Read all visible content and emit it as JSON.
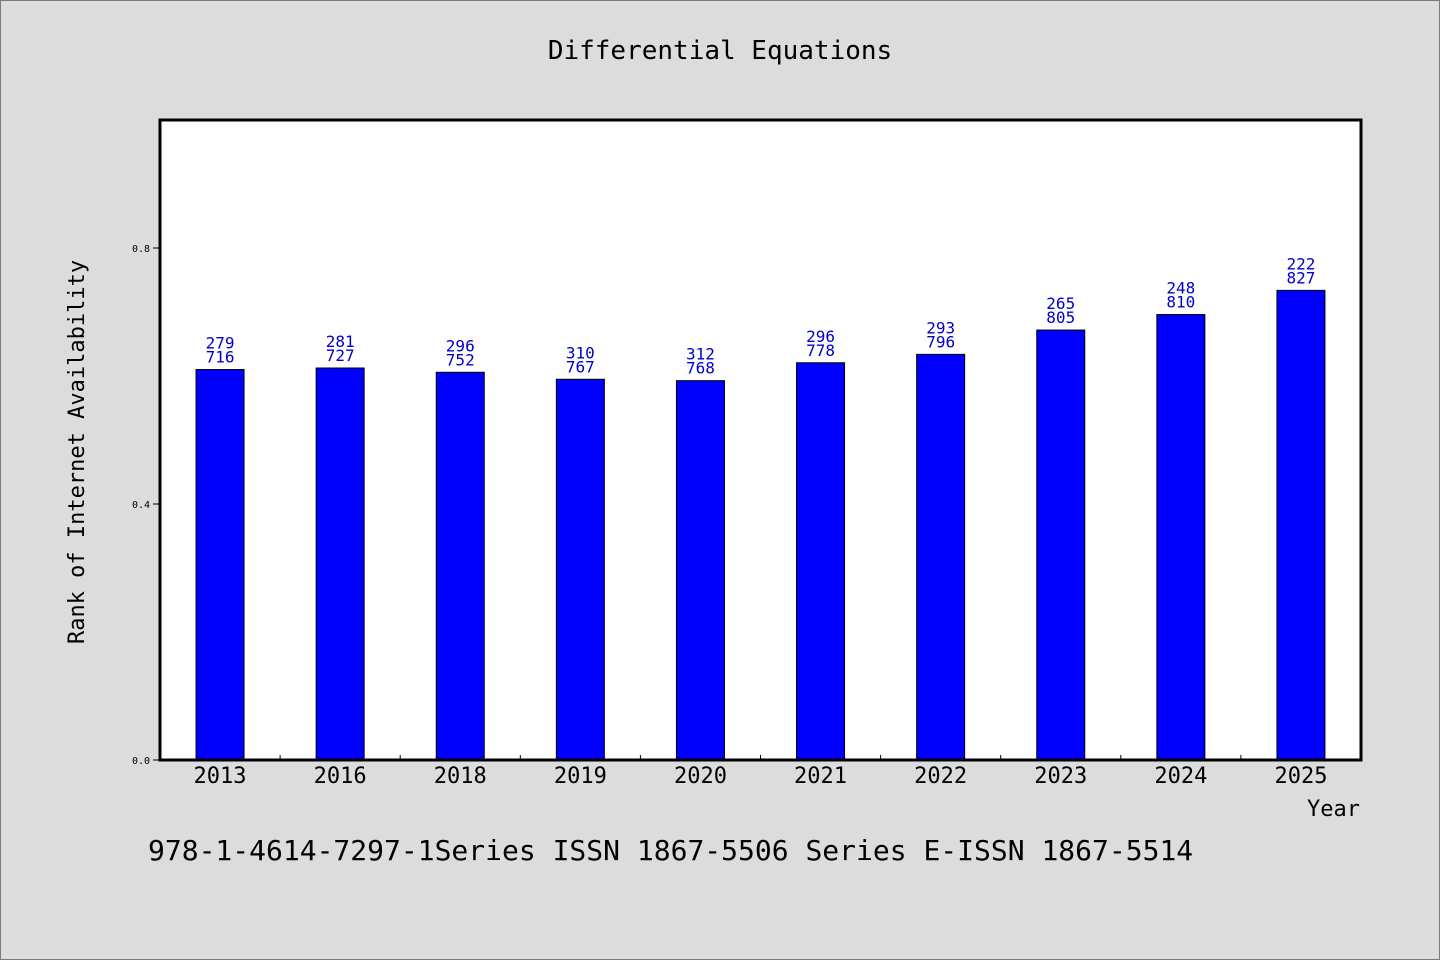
{
  "chart_data": {
    "type": "bar",
    "title": "Differential Equations",
    "xlabel": "Year",
    "ylabel": "Rank of Internet Availability",
    "categories": [
      "2013",
      "2016",
      "2018",
      "2019",
      "2020",
      "2021",
      "2022",
      "2023",
      "2024",
      "2025"
    ],
    "values": [
      0.6101,
      0.6125,
      0.6058,
      0.5949,
      0.5927,
      0.6207,
      0.6338,
      0.6718,
      0.696,
      0.7338
    ],
    "data_labels": [
      [
        "279",
        "716"
      ],
      [
        "281",
        "727"
      ],
      [
        "296",
        "752"
      ],
      [
        "310",
        "767"
      ],
      [
        "312",
        "768"
      ],
      [
        "296",
        "778"
      ],
      [
        "293",
        "796"
      ],
      [
        "265",
        "805"
      ],
      [
        "248",
        "810"
      ],
      [
        "222",
        "827"
      ]
    ],
    "yticks": [
      "0.0",
      "0.4",
      "0.8"
    ],
    "ylim": [
      0,
      1.0
    ],
    "bar_color": "#0000ff",
    "label_color": "#0000cc",
    "grid": false,
    "legend": false
  },
  "footer": {
    "text": "978-1-4614-7297-1Series ISSN 1867-5506 Series E-ISSN 1867-5514"
  }
}
